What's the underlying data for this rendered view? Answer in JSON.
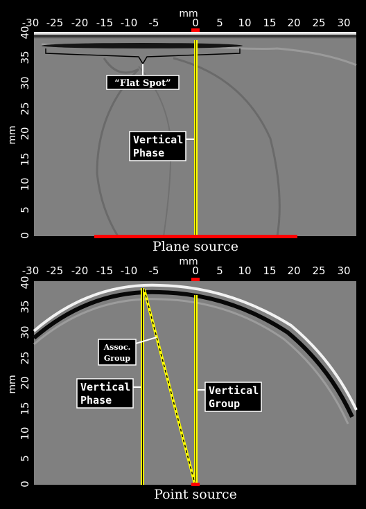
{
  "units": "mm",
  "x_ticks": [
    "-30",
    "-25",
    "-20",
    "-15",
    "-10",
    "-5",
    "0",
    "5",
    "10",
    "15",
    "20",
    "25",
    "30"
  ],
  "y_ticks": [
    "0",
    "5",
    "10",
    "15",
    "20",
    "25",
    "30",
    "35",
    "40"
  ],
  "colors": {
    "background": "#000000",
    "panel_gray": "#808080",
    "highlight_line": "#ffff00",
    "source_marker": "#ff0000",
    "label_box": "#000000",
    "label_border": "#ffffff"
  },
  "top_panel": {
    "caption": "Plane source",
    "labels": {
      "flat_spot": "“Flat Spot”",
      "vertical_phase_1": "Vertical",
      "vertical_phase_2": "Phase"
    }
  },
  "bottom_panel": {
    "caption": "Point source",
    "labels": {
      "assoc_group_1": "Assoc.",
      "assoc_group_2": "Group",
      "vertical_phase_1": "Vertical",
      "vertical_phase_2": "Phase",
      "vertical_group_1": "Vertical",
      "vertical_group_2": "Group"
    }
  }
}
